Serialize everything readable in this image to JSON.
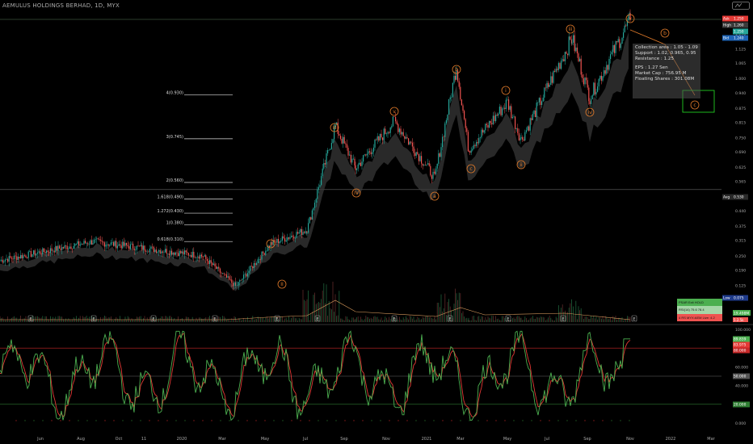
{
  "title": "AEMULUS HOLDINGS BERHAD, 1D, MYX",
  "info_box": {
    "line1": "Collection area : 1.05 - 1.09",
    "line2": "Support : 1.02,  0.965,  0.95",
    "line3": "Resistance : 1.25",
    "line4": "EPS : 1.27 Sen",
    "line5": "Market Cap : 756.95 M",
    "line6": "Floating Shares : 301.08M"
  },
  "price_tags": {
    "ask": {
      "label": "Ask",
      "value": "1.250",
      "color": "#e53935"
    },
    "high": {
      "label": "High",
      "value": "1.260",
      "color": "#3a3a3a"
    },
    "last": {
      "label": "",
      "value": "1.250",
      "color": "#26a69a"
    },
    "bid": {
      "label": "Bid",
      "value": "1.240",
      "color": "#1e63b5"
    },
    "avg": {
      "label": "Avg",
      "value": "0.530",
      "color": "#2a2a2a"
    },
    "low": {
      "label": "Low",
      "value": "0.075",
      "color": "#1e3a8a"
    },
    "volume": {
      "label": "",
      "value": "19.498M",
      "color": "#4caf50"
    },
    "small_red": {
      "label": "",
      "value": "5.2.5k",
      "color": "#ef5350"
    }
  },
  "osc_tags": {
    "k": {
      "value": "89.839",
      "color": "#4caf50"
    },
    "d": {
      "value": "83.975",
      "color": "#e53935"
    },
    "ob": {
      "value": "80.000",
      "color": "#c62828"
    },
    "mid": {
      "value": "50.000",
      "color": "#555555"
    },
    "os": {
      "value": "20.000",
      "color": "#2e7d32"
    }
  },
  "table": {
    "rows": [
      {
        "text": "PSAR   Exit   HOLD",
        "color": "#4caf50"
      },
      {
        "text": "RSI(14)   75.6   78.4",
        "color": "#a5d6a7"
      },
      {
        "text": "4 RS   MYX:AEM   Live: 4.2",
        "color": "#ef5350"
      }
    ]
  },
  "colors": {
    "up": "#26a69a",
    "down": "#ef5350",
    "wave": "#e07a2a",
    "k_line": "#4caf50",
    "d_line": "#e53935",
    "band": "#3a3a3a",
    "target_box": "#22cc22"
  },
  "chart_data": [
    {
      "type": "candlestick",
      "title": "AEMULUS HOLDINGS BERHAD, 1D, MYX",
      "ylim": [
        0.075,
        1.25
      ],
      "y_ticks": [
        "1.250",
        "1.190",
        "1.125",
        "1.065",
        "1.000",
        "0.940",
        "0.875",
        "0.815",
        "0.750",
        "0.690",
        "0.625",
        "0.565",
        "0.500",
        "0.440",
        "0.375",
        "0.315",
        "0.250",
        "0.190",
        "0.125",
        "0.060"
      ],
      "x_ticks": [
        "Jun",
        "Aug",
        "Oct",
        "11",
        "2020",
        "Mar",
        "May",
        "Jul",
        "Sep",
        "Nov",
        "2021",
        "Mar",
        "May",
        "Jul",
        "Sep",
        "Nov",
        "2022",
        "Mar"
      ],
      "price_path": [
        [
          "start",
          0.23
        ],
        [
          "early_hi",
          0.31
        ],
        [
          "flat",
          0.25
        ],
        [
          "II",
          0.12
        ],
        [
          "I",
          0.3
        ],
        [
          "pre_jump",
          0.36
        ],
        [
          "III",
          0.8
        ],
        [
          "IV",
          0.62
        ],
        [
          "v_small",
          0.82
        ],
        [
          "a",
          0.58
        ],
        [
          "b",
          1.05
        ],
        [
          "c",
          0.7
        ],
        [
          "i",
          0.9
        ],
        [
          "ii",
          0.74
        ],
        [
          "iii",
          1.17
        ],
        [
          "iv",
          0.92
        ],
        [
          "v",
          1.25
        ]
      ],
      "elliott_labels": [
        "I",
        "II",
        "III",
        "IV",
        "v",
        "a",
        "b",
        "c",
        "i",
        "ii",
        "iii",
        "iv",
        "v",
        "b",
        "c"
      ],
      "fib_levels": [
        {
          "label": "4(0.930)",
          "value": 0.93
        },
        {
          "label": "3(0.745)",
          "value": 0.745
        },
        {
          "label": "2(0.560)",
          "value": 0.56
        },
        {
          "label": "1.618(0.490)",
          "value": 0.49
        },
        {
          "label": "1.272(0.430)",
          "value": 0.43
        },
        {
          "label": "1(0.380)",
          "value": 0.38
        },
        {
          "label": "0.618(0.310)",
          "value": 0.31
        }
      ],
      "earnings_markers": [
        "E",
        "E",
        "E",
        "E",
        "E",
        "E",
        "E",
        "E",
        "E",
        "E",
        "E",
        "E",
        "E",
        "E"
      ]
    },
    {
      "type": "line",
      "title": "Stochastic",
      "ylim": [
        0,
        100
      ],
      "y_ticks": [
        "100.000",
        "80.000",
        "60.000",
        "40.000",
        "20.000",
        "0.000"
      ],
      "levels": [
        80,
        50,
        20
      ],
      "series": [
        {
          "name": "",
          "last": 89.839
        },
        {
          "name": "",
          "last": 83.975
        }
      ]
    }
  ]
}
